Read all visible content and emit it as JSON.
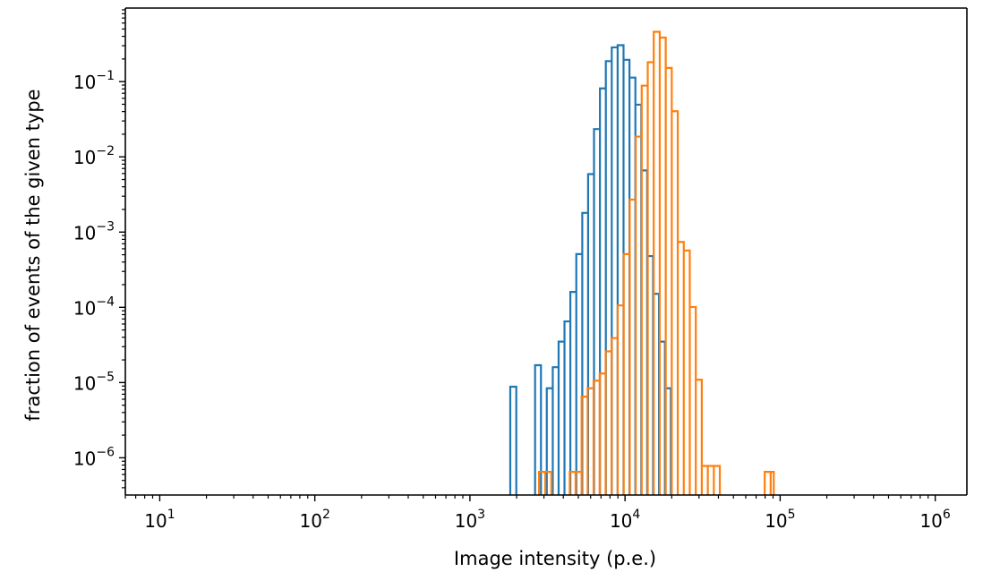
{
  "chart_data": {
    "type": "histogram-step",
    "title": "",
    "xlabel": "Image intensity (p.e.)",
    "ylabel": "fraction of events of the given type",
    "xscale": "log",
    "yscale": "log",
    "xlim": [
      6,
      1600000
    ],
    "ylim": [
      3.2e-07,
      0.95
    ],
    "xticks": [
      {
        "base": "10",
        "exp": "1",
        "value": 10
      },
      {
        "base": "10",
        "exp": "2",
        "value": 100
      },
      {
        "base": "10",
        "exp": "3",
        "value": 1000
      },
      {
        "base": "10",
        "exp": "4",
        "value": 10000
      },
      {
        "base": "10",
        "exp": "5",
        "value": 100000
      },
      {
        "base": "10",
        "exp": "6",
        "value": 1000000
      }
    ],
    "yticks": [
      {
        "base": "10",
        "exp": "−1",
        "value": 0.1
      },
      {
        "base": "10",
        "exp": "−2",
        "value": 0.01
      },
      {
        "base": "10",
        "exp": "−3",
        "value": 0.001
      },
      {
        "base": "10",
        "exp": "−4",
        "value": 0.0001
      },
      {
        "base": "10",
        "exp": "−5",
        "value": 1e-05
      },
      {
        "base": "10",
        "exp": "−6",
        "value": 1e-06
      }
    ],
    "grid": false,
    "legend": null,
    "series": [
      {
        "color": "#1f77b4",
        "bins": [
          {
            "x0": 1820,
            "x1": 1990,
            "y": 8.8e-06
          },
          {
            "x0": 2630,
            "x1": 2870,
            "y": 1.7e-05
          },
          {
            "x0": 3130,
            "x1": 3420,
            "y": 8.4e-06
          },
          {
            "x0": 3420,
            "x1": 3730,
            "y": 1.6e-05
          },
          {
            "x0": 3730,
            "x1": 4070,
            "y": 3.5e-05
          },
          {
            "x0": 4070,
            "x1": 4440,
            "y": 6.5e-05
          },
          {
            "x0": 4440,
            "x1": 4850,
            "y": 0.00016
          },
          {
            "x0": 4850,
            "x1": 5300,
            "y": 0.00051
          },
          {
            "x0": 5300,
            "x1": 5780,
            "y": 0.0018
          },
          {
            "x0": 5780,
            "x1": 6310,
            "y": 0.0059
          },
          {
            "x0": 6310,
            "x1": 6890,
            "y": 0.0234
          },
          {
            "x0": 6890,
            "x1": 7520,
            "y": 0.0812
          },
          {
            "x0": 7520,
            "x1": 8210,
            "y": 0.187
          },
          {
            "x0": 8210,
            "x1": 8960,
            "y": 0.285
          },
          {
            "x0": 8960,
            "x1": 9780,
            "y": 0.305
          },
          {
            "x0": 9780,
            "x1": 10680,
            "y": 0.195
          },
          {
            "x0": 10680,
            "x1": 11660,
            "y": 0.113
          },
          {
            "x0": 11660,
            "x1": 12730,
            "y": 0.0494
          },
          {
            "x0": 12730,
            "x1": 13890,
            "y": 0.0066
          },
          {
            "x0": 13890,
            "x1": 15170,
            "y": 0.00048
          },
          {
            "x0": 15170,
            "x1": 16560,
            "y": 0.000151
          },
          {
            "x0": 16560,
            "x1": 18080,
            "y": 3.5e-05
          },
          {
            "x0": 18080,
            "x1": 19740,
            "y": 8.4e-06
          }
        ]
      },
      {
        "color": "#ff7f0e",
        "bins": [
          {
            "x0": 2790,
            "x1": 3060,
            "y": 6.5e-07
          },
          {
            "x0": 3060,
            "x1": 3350,
            "y": 6.5e-07
          },
          {
            "x0": 4400,
            "x1": 4800,
            "y": 6.5e-07
          },
          {
            "x0": 4800,
            "x1": 5250,
            "y": 6.5e-07
          },
          {
            "x0": 5250,
            "x1": 5740,
            "y": 6.5e-06
          },
          {
            "x0": 5740,
            "x1": 6270,
            "y": 8.4e-06
          },
          {
            "x0": 6270,
            "x1": 6860,
            "y": 1.06e-05
          },
          {
            "x0": 6860,
            "x1": 7500,
            "y": 1.32e-05
          },
          {
            "x0": 7500,
            "x1": 8200,
            "y": 2.6e-05
          },
          {
            "x0": 8200,
            "x1": 8970,
            "y": 3.9e-05
          },
          {
            "x0": 8970,
            "x1": 9800,
            "y": 0.000106
          },
          {
            "x0": 9800,
            "x1": 10720,
            "y": 0.00051
          },
          {
            "x0": 10720,
            "x1": 11720,
            "y": 0.0027
          },
          {
            "x0": 11720,
            "x1": 12810,
            "y": 0.0186
          },
          {
            "x0": 12810,
            "x1": 14010,
            "y": 0.0884
          },
          {
            "x0": 14010,
            "x1": 15310,
            "y": 0.181
          },
          {
            "x0": 15310,
            "x1": 16740,
            "y": 0.46
          },
          {
            "x0": 16740,
            "x1": 18300,
            "y": 0.385
          },
          {
            "x0": 18300,
            "x1": 20010,
            "y": 0.152
          },
          {
            "x0": 20010,
            "x1": 21880,
            "y": 0.0404
          },
          {
            "x0": 21880,
            "x1": 23920,
            "y": 0.00074
          },
          {
            "x0": 23920,
            "x1": 26150,
            "y": 0.00057
          },
          {
            "x0": 26150,
            "x1": 28590,
            "y": 0.000101
          },
          {
            "x0": 28590,
            "x1": 31260,
            "y": 1.09e-05
          },
          {
            "x0": 31260,
            "x1": 34180,
            "y": 7.8e-07
          },
          {
            "x0": 34180,
            "x1": 37370,
            "y": 7.8e-07
          },
          {
            "x0": 37370,
            "x1": 40850,
            "y": 7.8e-07
          },
          {
            "x0": 79500,
            "x1": 86900,
            "y": 6.5e-07
          },
          {
            "x0": 86900,
            "x1": 91000,
            "y": 6.5e-07
          }
        ]
      }
    ]
  }
}
